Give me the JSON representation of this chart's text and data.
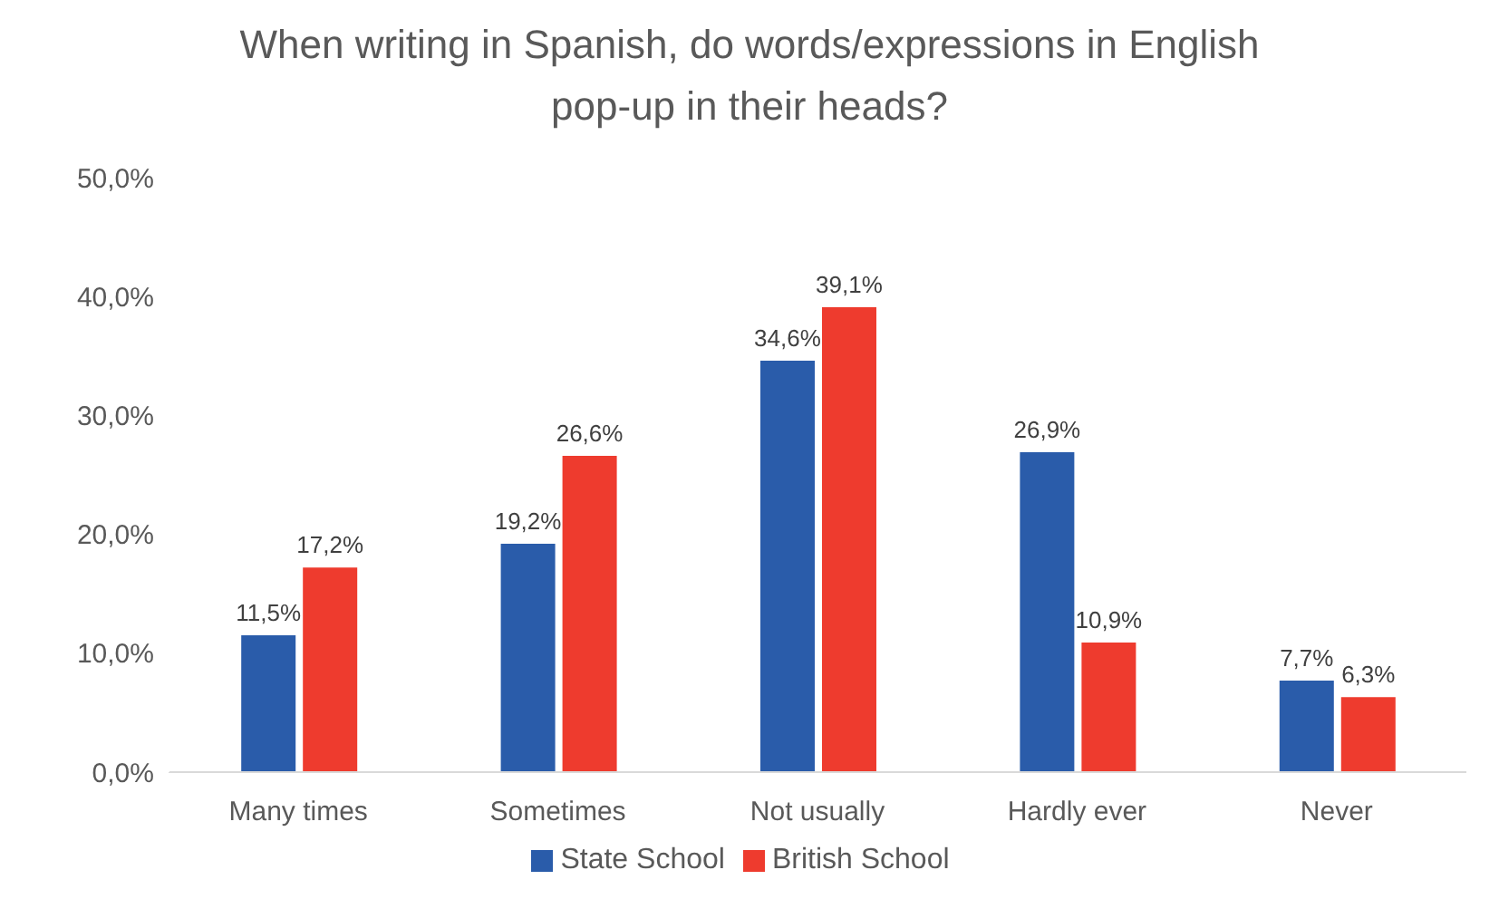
{
  "chart_data": {
    "type": "bar",
    "title": "When writing in Spanish, do words/expressions in English pop-up in their heads?",
    "categories": [
      "Many times",
      "Sometimes",
      "Not usually",
      "Hardly ever",
      "Never"
    ],
    "series": [
      {
        "name": "State School",
        "color": "#2a5caa",
        "values": [
          11.5,
          19.2,
          34.6,
          26.9,
          7.7
        ],
        "value_labels": [
          "11,5%",
          "19,2%",
          "34,6%",
          "26,9%",
          "7,7%"
        ]
      },
      {
        "name": "British School",
        "color": "#ee3b2e",
        "values": [
          17.2,
          26.6,
          39.1,
          10.9,
          6.3
        ],
        "value_labels": [
          "17,2%",
          "26,6%",
          "39,1%",
          "10,9%",
          "6,3%"
        ]
      }
    ],
    "ylim": [
      0,
      50
    ],
    "yticks": [
      {
        "value": 0,
        "label": "0,0%"
      },
      {
        "value": 10,
        "label": "10,0%"
      },
      {
        "value": 20,
        "label": "20,0%"
      },
      {
        "value": 30,
        "label": "30,0%"
      },
      {
        "value": 40,
        "label": "40,0%"
      },
      {
        "value": 50,
        "label": "50,0%"
      }
    ],
    "legend": "bottom"
  }
}
